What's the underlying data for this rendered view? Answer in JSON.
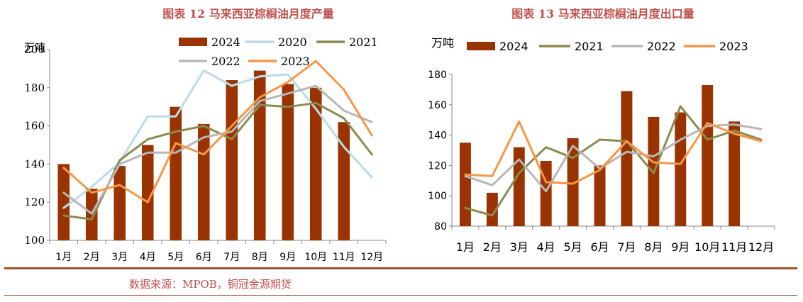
{
  "source_text": "数据来源：MPOB，铜冠金源期货",
  "chart_data": [
    {
      "type": "bar+line",
      "title": "图表 12  马来西亚棕榈油月度产量",
      "ylabel": "万吨",
      "ylim": [
        100,
        200
      ],
      "yticks": [
        100,
        120,
        140,
        160,
        180,
        200
      ],
      "categories": [
        "1月",
        "2月",
        "3月",
        "4月",
        "5月",
        "6月",
        "7月",
        "8月",
        "9月",
        "10月",
        "11月",
        "12月"
      ],
      "legend_position": "top",
      "bar_series": {
        "name": "2024",
        "color": "#993300",
        "values": [
          140,
          127,
          139,
          150,
          170,
          161,
          184,
          189,
          182,
          180,
          162,
          null
        ]
      },
      "line_series": [
        {
          "name": "2020",
          "color": "#b7dde8",
          "values": [
            117,
            128,
            141,
            165,
            165,
            189,
            181,
            186,
            187,
            169,
            149,
            133
          ]
        },
        {
          "name": "2021",
          "color": "#8b8b4e",
          "values": [
            113,
            111,
            142,
            153,
            157,
            160,
            153,
            171,
            170,
            172,
            164,
            145
          ]
        },
        {
          "name": "2022",
          "color": "#b7b7b7",
          "values": [
            125,
            114,
            140,
            146,
            146,
            154,
            157,
            173,
            177,
            181,
            168,
            162
          ]
        },
        {
          "name": "2023",
          "color": "#f79646",
          "values": [
            138,
            125,
            129,
            120,
            151,
            145,
            160,
            175,
            183,
            194,
            179,
            155
          ]
        }
      ]
    },
    {
      "type": "bar+line",
      "title": "图表 13  马来西亚棕榈油月度出口量",
      "ylabel": "万吨",
      "ylim": [
        80,
        180
      ],
      "yticks": [
        80,
        100,
        120,
        140,
        160,
        180
      ],
      "categories": [
        "1月",
        "2月",
        "3月",
        "4月",
        "5月",
        "6月",
        "7月",
        "8月",
        "9月",
        "10月",
        "11月",
        "12月"
      ],
      "legend_position": "top",
      "bar_series": {
        "name": "2024",
        "color": "#993300",
        "values": [
          135,
          102,
          132,
          123,
          138,
          120,
          169,
          152,
          155,
          173,
          149,
          null
        ]
      },
      "line_series": [
        {
          "name": "2021",
          "color": "#8b8b4e",
          "values": [
            92,
            87,
            115,
            132,
            125,
            137,
            136,
            115,
            159,
            137,
            143,
            137
          ]
        },
        {
          "name": "2022",
          "color": "#b7b7b7",
          "values": [
            113,
            107,
            124,
            103,
            133,
            118,
            129,
            126,
            137,
            146,
            147,
            144
          ]
        },
        {
          "name": "2023",
          "color": "#f79646",
          "values": [
            114,
            113,
            149,
            109,
            108,
            117,
            136,
            122,
            121,
            148,
            141,
            136
          ]
        }
      ]
    }
  ]
}
